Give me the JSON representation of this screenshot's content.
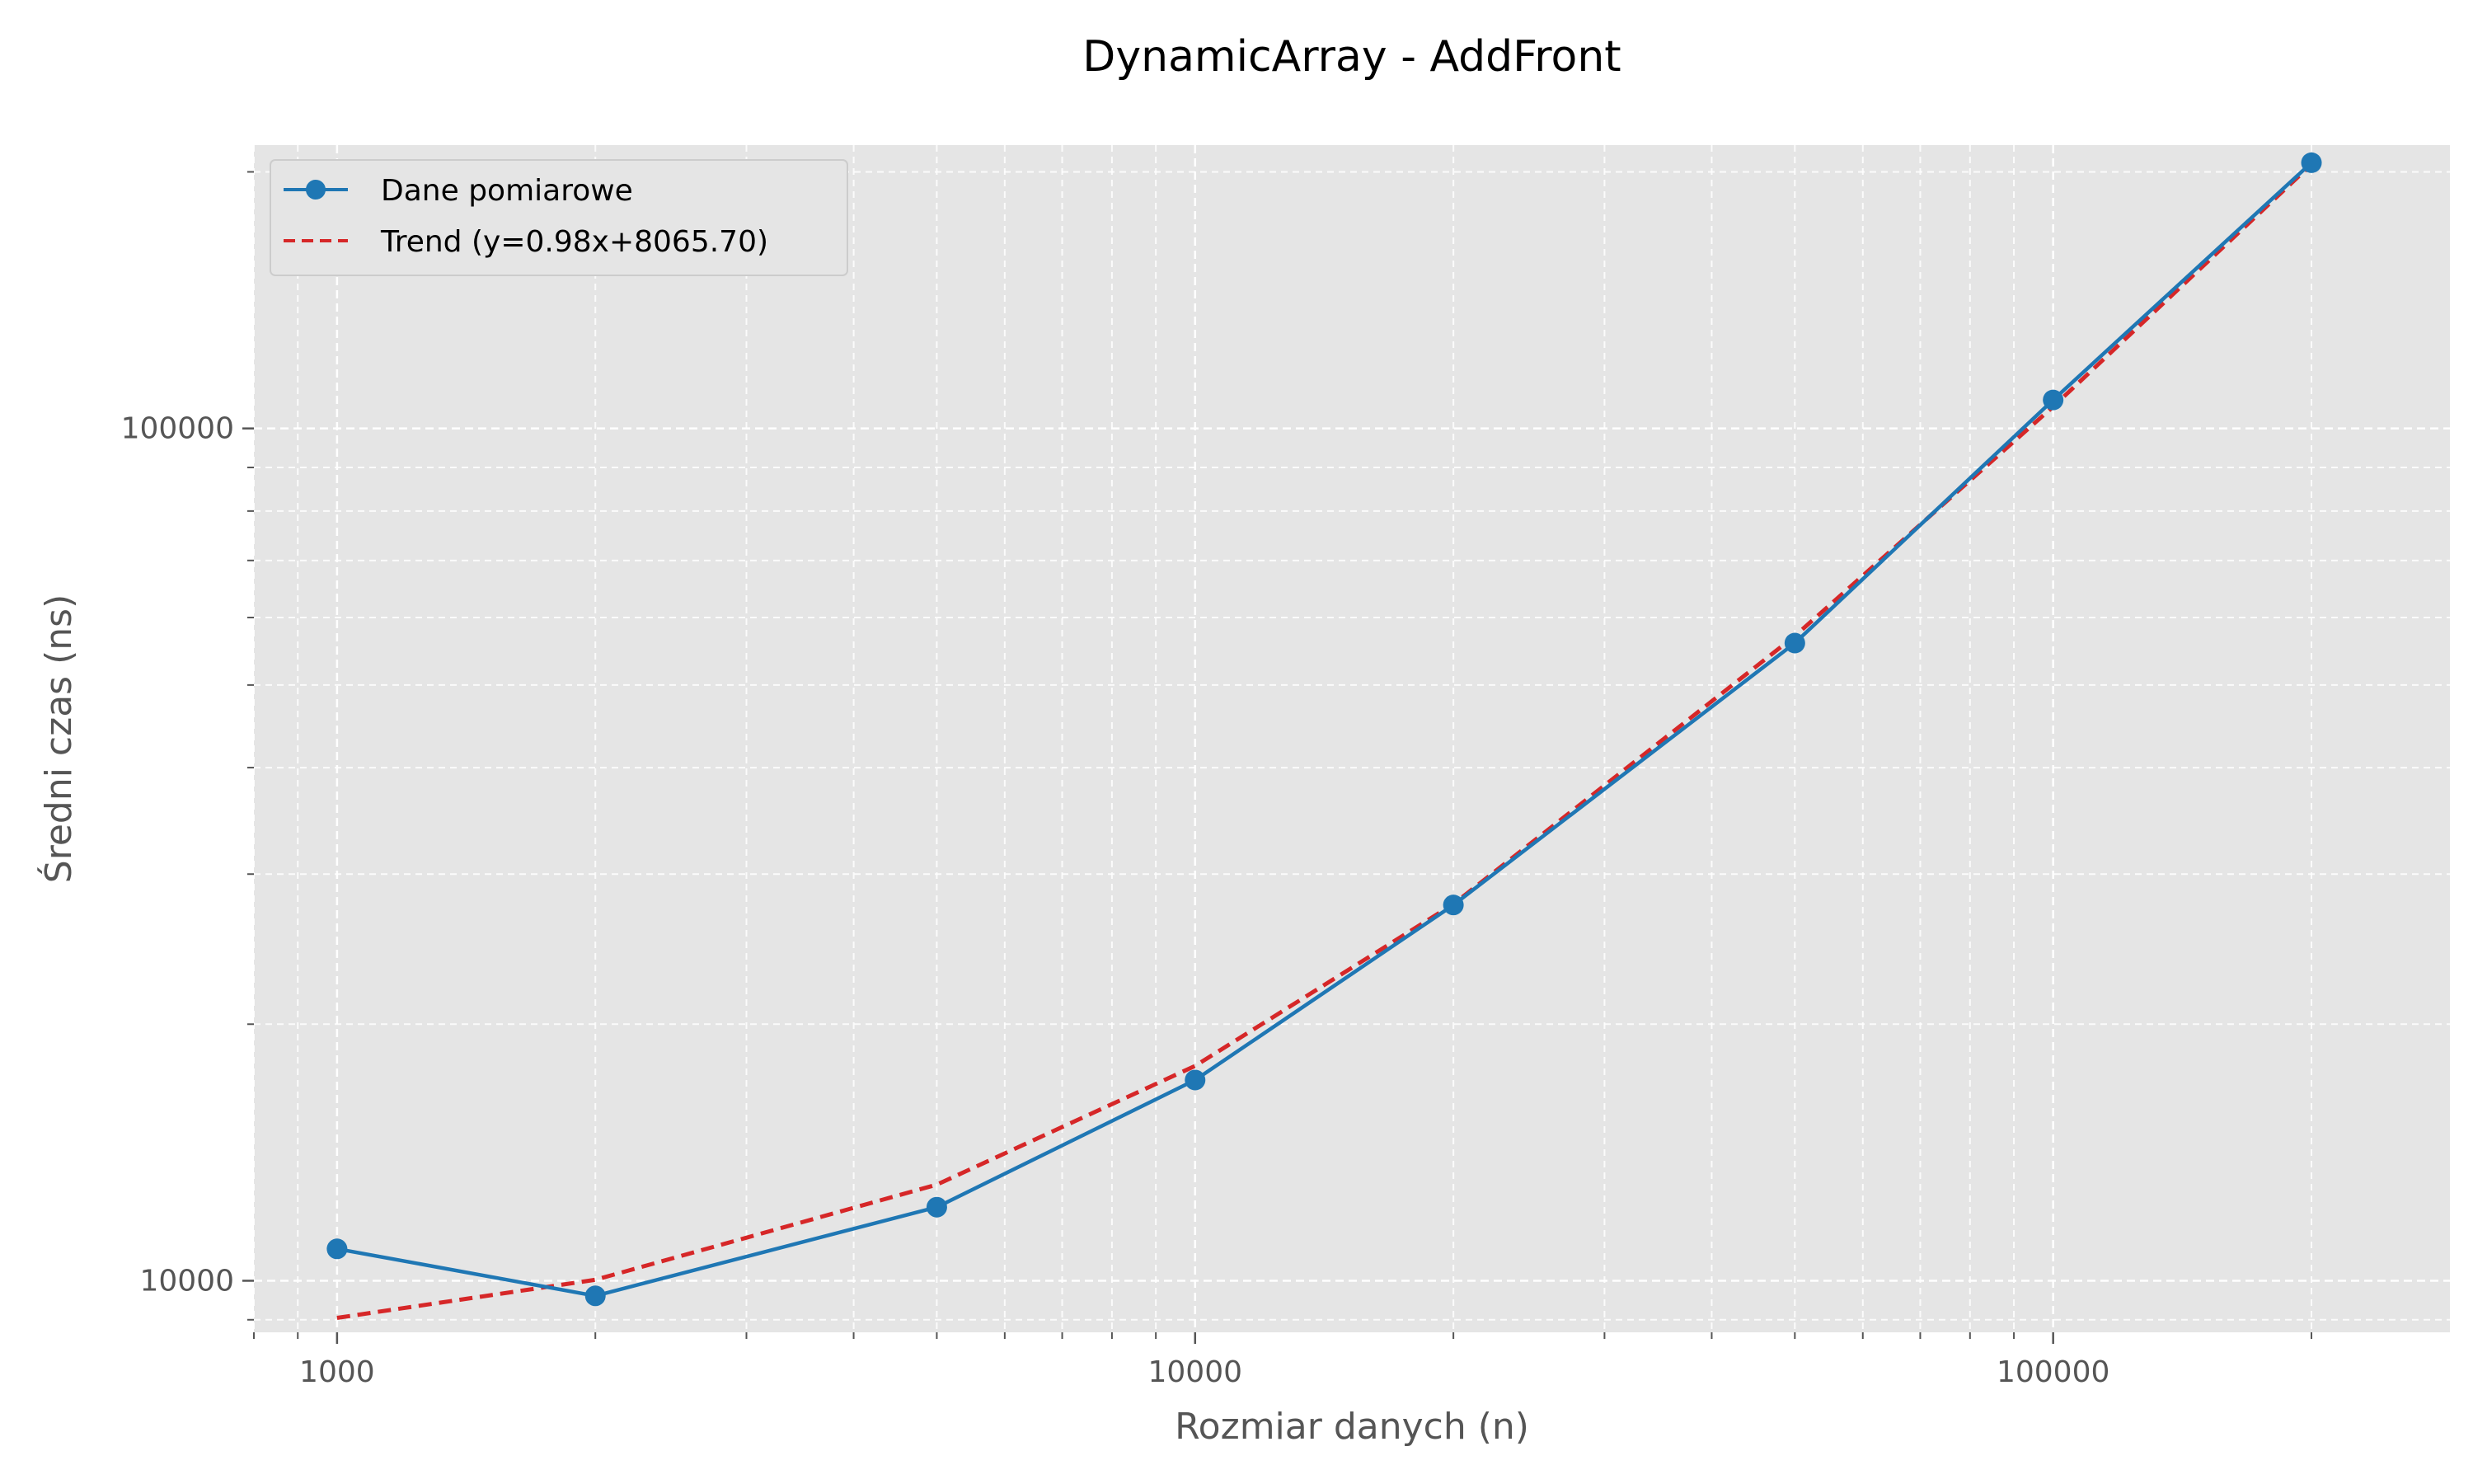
{
  "chart_data": {
    "type": "line",
    "title": "DynamicArray - AddFront",
    "xlabel": "Rozmiar danych (n)",
    "ylabel": "Średni czas (ns)",
    "xscale": "log",
    "yscale": "log",
    "xlim": [
      800,
      290000
    ],
    "ylim": [
      8700,
      215000
    ],
    "x_ticks": [
      {
        "value": 1000,
        "label": "1000"
      },
      {
        "value": 10000,
        "label": "10000"
      },
      {
        "value": 100000,
        "label": "100000"
      }
    ],
    "y_ticks": [
      {
        "value": 10000,
        "label": "10000"
      },
      {
        "value": 100000,
        "label": "100000"
      }
    ],
    "grid": true,
    "legend_position": "top-left",
    "series": [
      {
        "name": "Dane pomiarowe",
        "style": "solid-marker",
        "color": "#1f77b4",
        "x": [
          1000,
          2000,
          5000,
          10000,
          20000,
          50000,
          100000,
          200000
        ],
        "y": [
          10900,
          9600,
          12200,
          17200,
          27600,
          56000,
          108000,
          205000
        ]
      },
      {
        "name": "Trend (y=0.98x+8065.70)",
        "style": "dashed",
        "color": "#d62728",
        "x": [
          1000,
          2000,
          5000,
          10000,
          20000,
          50000,
          100000,
          200000
        ],
        "y": [
          9046,
          10026,
          12966,
          17866,
          27666,
          57066,
          106066,
          204066
        ]
      }
    ]
  },
  "colors": {
    "plot_background": "#e5e5e5",
    "grid": "#ffffff"
  }
}
